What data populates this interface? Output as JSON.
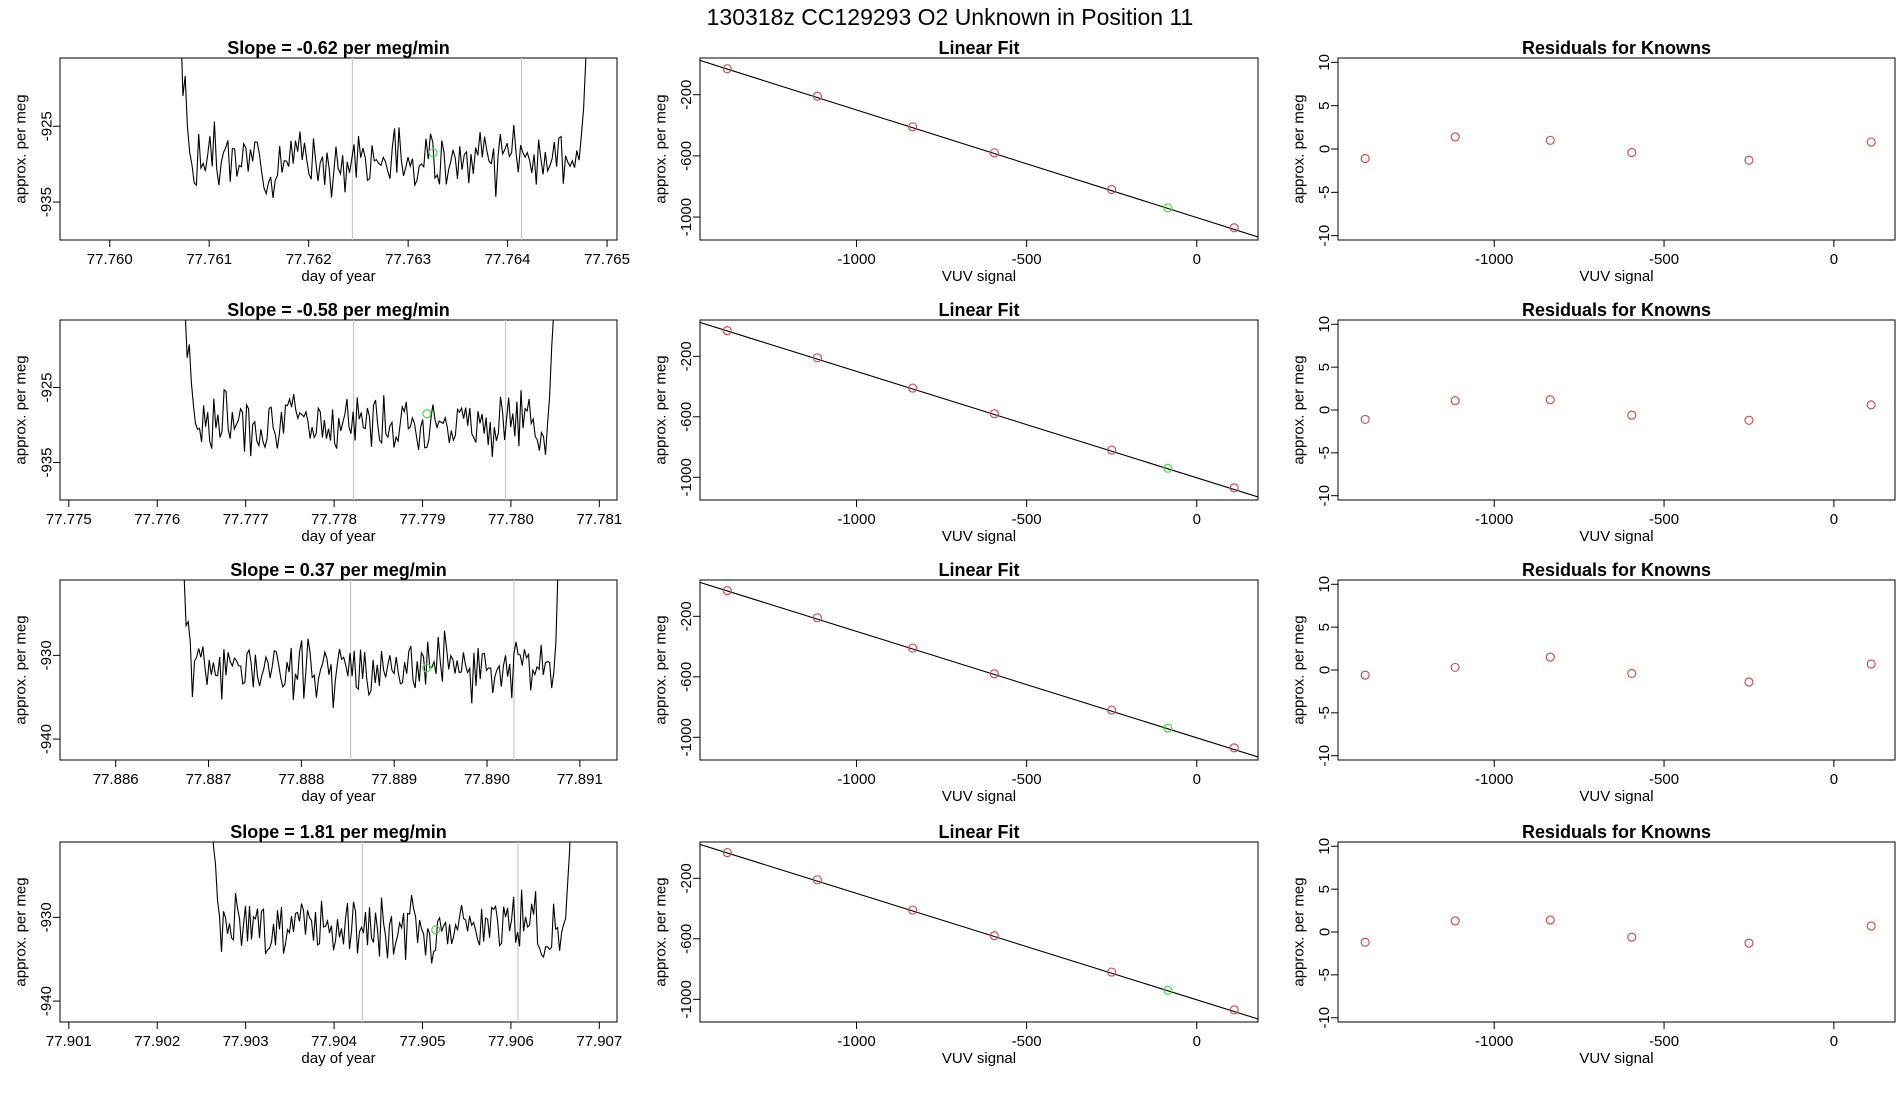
{
  "figure": {
    "title": "130318z      CC129293    O2 Unknown in Position  11",
    "colors": {
      "line": "#000000",
      "grid": "#c8c8c8",
      "known_point": "#d05050",
      "unknown_point": "#44dd44",
      "axes": "#000000"
    }
  },
  "chart_data": [
    {
      "type": "line",
      "title": "Slope =  -0.62  per meg/min",
      "xlabel": "day of year",
      "ylabel": "approx. per meg",
      "xlim": [
        77.7595,
        77.7651
      ],
      "ylim": [
        -940,
        -916
      ],
      "xticks": [
        77.76,
        77.761,
        77.762,
        77.763,
        77.764,
        77.765
      ],
      "xtick_labels": [
        "77.760",
        "77.761",
        "77.762",
        "77.763",
        "77.764",
        "77.765"
      ],
      "yticks": [
        -925,
        -935
      ],
      "ytick_labels": [
        "-925",
        "-935"
      ],
      "vlines": [
        77.76244,
        77.76414
      ],
      "trace": {
        "x_start": 77.7606,
        "x_end": 77.7649,
        "level": -929.5,
        "noise": 2.4,
        "seed": 3
      },
      "marker": {
        "x": 77.76325,
        "y": -928.5
      }
    },
    {
      "type": "scatter",
      "title": "Linear Fit",
      "xlabel": "VUV signal",
      "ylabel": "approx. per meg",
      "xlim": [
        -1460,
        180
      ],
      "ylim": [
        -1150,
        40
      ],
      "xticks": [
        -1000,
        -500,
        0
      ],
      "xtick_labels": [
        "-1000",
        "-500",
        "0"
      ],
      "yticks": [
        -200,
        -600,
        -1000
      ],
      "ytick_labels": [
        "-200",
        "-600",
        "-1000"
      ],
      "fit_line": {
        "x": [
          -1460,
          180
        ],
        "y": [
          24,
          -1130
        ]
      },
      "known_points": {
        "x": [
          -1380,
          -1115,
          -835,
          -595,
          -250,
          110
        ],
        "y": [
          -30,
          -210,
          -410,
          -580,
          -820,
          -1070
        ]
      },
      "unknown_points": {
        "x": [
          -85
        ],
        "y": [
          -940
        ]
      }
    },
    {
      "type": "scatter",
      "title": "Residuals for Knowns",
      "xlabel": "VUV signal",
      "ylabel": "approx. per meg",
      "xlim": [
        -1460,
        180
      ],
      "ylim": [
        -10.5,
        10.5
      ],
      "xticks": [
        -1000,
        -500,
        0
      ],
      "xtick_labels": [
        "-1000",
        "-500",
        "0"
      ],
      "yticks": [
        10,
        5,
        0,
        -5,
        -10
      ],
      "ytick_labels": [
        "10",
        "5",
        "0",
        "-5",
        "-10"
      ],
      "points": {
        "x": [
          -1380,
          -1115,
          -835,
          -595,
          -250,
          110
        ],
        "y": [
          -1.1,
          1.4,
          1.0,
          -0.4,
          -1.3,
          0.8
        ]
      }
    },
    {
      "type": "line",
      "title": "Slope =  -0.58  per meg/min",
      "xlabel": "day of year",
      "ylabel": "approx. per meg",
      "xlim": [
        77.7749,
        77.7812
      ],
      "ylim": [
        -940,
        -916
      ],
      "xticks": [
        77.775,
        77.776,
        77.777,
        77.778,
        77.779,
        77.78,
        77.781
      ],
      "xtick_labels": [
        "77.775",
        "77.776",
        "77.777",
        "77.778",
        "77.779",
        "77.780",
        "77.781"
      ],
      "yticks": [
        -925,
        -935
      ],
      "ytick_labels": [
        "-925",
        "-935"
      ],
      "vlines": [
        77.77822,
        77.77994
      ],
      "trace": {
        "x_start": 77.7762,
        "x_end": 77.7806,
        "level": -929.5,
        "noise": 2.4,
        "seed": 7
      },
      "marker": {
        "x": 77.77905,
        "y": -928.5
      }
    },
    {
      "type": "scatter",
      "title": "Linear Fit",
      "xlabel": "VUV signal",
      "ylabel": "approx. per meg",
      "xlim": [
        -1460,
        180
      ],
      "ylim": [
        -1150,
        40
      ],
      "xticks": [
        -1000,
        -500,
        0
      ],
      "xtick_labels": [
        "-1000",
        "-500",
        "0"
      ],
      "yticks": [
        -200,
        -600,
        -1000
      ],
      "ytick_labels": [
        "-200",
        "-600",
        "-1000"
      ],
      "fit_line": {
        "x": [
          -1460,
          180
        ],
        "y": [
          24,
          -1130
        ]
      },
      "known_points": {
        "x": [
          -1380,
          -1115,
          -835,
          -595,
          -250,
          110
        ],
        "y": [
          -30,
          -210,
          -410,
          -580,
          -820,
          -1070
        ]
      },
      "unknown_points": {
        "x": [
          -85
        ],
        "y": [
          -940
        ]
      }
    },
    {
      "type": "scatter",
      "title": "Residuals for Knowns",
      "xlabel": "VUV signal",
      "ylabel": "approx. per meg",
      "xlim": [
        -1460,
        180
      ],
      "ylim": [
        -10.5,
        10.5
      ],
      "xticks": [
        -1000,
        -500,
        0
      ],
      "xtick_labels": [
        "-1000",
        "-500",
        "0"
      ],
      "yticks": [
        10,
        5,
        0,
        -5,
        -10
      ],
      "ytick_labels": [
        "10",
        "5",
        "0",
        "-5",
        "-10"
      ],
      "points": {
        "x": [
          -1380,
          -1115,
          -835,
          -595,
          -250,
          110
        ],
        "y": [
          -1.1,
          1.1,
          1.2,
          -0.6,
          -1.2,
          0.6
        ]
      }
    },
    {
      "type": "line",
      "title": "Slope =  0.37  per meg/min",
      "xlabel": "day of year",
      "ylabel": "approx. per meg",
      "xlim": [
        77.8854,
        77.8914
      ],
      "ylim": [
        -942.5,
        -921
      ],
      "xticks": [
        77.886,
        77.887,
        77.888,
        77.889,
        77.89,
        77.891
      ],
      "xtick_labels": [
        "77.886",
        "77.887",
        "77.888",
        "77.889",
        "77.890",
        "77.891"
      ],
      "yticks": [
        -930,
        -940
      ],
      "ytick_labels": [
        "-930",
        "-940"
      ],
      "vlines": [
        77.88853,
        77.89029
      ],
      "trace": {
        "x_start": 77.8866,
        "x_end": 77.8909,
        "level": -931.5,
        "noise": 2.2,
        "seed": 11
      },
      "marker": {
        "x": 77.88935,
        "y": -931.5
      }
    },
    {
      "type": "scatter",
      "title": "Linear Fit",
      "xlabel": "VUV signal",
      "ylabel": "approx. per meg",
      "xlim": [
        -1460,
        180
      ],
      "ylim": [
        -1150,
        40
      ],
      "xticks": [
        -1000,
        -500,
        0
      ],
      "xtick_labels": [
        "-1000",
        "-500",
        "0"
      ],
      "yticks": [
        -200,
        -600,
        -1000
      ],
      "ytick_labels": [
        "-200",
        "-600",
        "-1000"
      ],
      "fit_line": {
        "x": [
          -1460,
          180
        ],
        "y": [
          24,
          -1130
        ]
      },
      "known_points": {
        "x": [
          -1380,
          -1115,
          -835,
          -595,
          -250,
          110
        ],
        "y": [
          -30,
          -210,
          -410,
          -580,
          -820,
          -1070
        ]
      },
      "unknown_points": {
        "x": [
          -85
        ],
        "y": [
          -940
        ]
      }
    },
    {
      "type": "scatter",
      "title": "Residuals for Knowns",
      "xlabel": "VUV signal",
      "ylabel": "approx. per meg",
      "xlim": [
        -1460,
        180
      ],
      "ylim": [
        -10.5,
        10.5
      ],
      "xticks": [
        -1000,
        -500,
        0
      ],
      "xtick_labels": [
        "-1000",
        "-500",
        "0"
      ],
      "yticks": [
        10,
        5,
        0,
        -5,
        -10
      ],
      "ytick_labels": [
        "10",
        "5",
        "0",
        "-5",
        "-10"
      ],
      "points": {
        "x": [
          -1380,
          -1115,
          -835,
          -595,
          -250,
          110
        ],
        "y": [
          -0.6,
          0.3,
          1.5,
          -0.4,
          -1.4,
          0.7
        ]
      }
    },
    {
      "type": "line",
      "title": "Slope =  1.81  per meg/min",
      "xlabel": "day of year",
      "ylabel": "approx. per meg",
      "xlim": [
        77.9009,
        77.9072
      ],
      "ylim": [
        -942.5,
        -921
      ],
      "xticks": [
        77.901,
        77.902,
        77.903,
        77.904,
        77.905,
        77.906,
        77.907
      ],
      "xtick_labels": [
        "77.901",
        "77.902",
        "77.903",
        "77.904",
        "77.905",
        "77.906",
        "77.907"
      ],
      "yticks": [
        -930,
        -940
      ],
      "ytick_labels": [
        "-930",
        "-940"
      ],
      "vlines": [
        77.90432,
        77.90608
      ],
      "trace": {
        "x_start": 77.9025,
        "x_end": 77.9068,
        "level": -931.0,
        "noise": 2.2,
        "seed": 17
      },
      "marker": {
        "x": 77.90515,
        "y": -931.5
      }
    },
    {
      "type": "scatter",
      "title": "Linear Fit",
      "xlabel": "VUV signal",
      "ylabel": "approx. per meg",
      "xlim": [
        -1460,
        180
      ],
      "ylim": [
        -1150,
        40
      ],
      "xticks": [
        -1000,
        -500,
        0
      ],
      "xtick_labels": [
        "-1000",
        "-500",
        "0"
      ],
      "yticks": [
        -200,
        -600,
        -1000
      ],
      "ytick_labels": [
        "-200",
        "-600",
        "-1000"
      ],
      "fit_line": {
        "x": [
          -1460,
          180
        ],
        "y": [
          24,
          -1130
        ]
      },
      "known_points": {
        "x": [
          -1380,
          -1115,
          -835,
          -595,
          -250,
          110
        ],
        "y": [
          -30,
          -210,
          -410,
          -580,
          -820,
          -1070
        ]
      },
      "unknown_points": {
        "x": [
          -85
        ],
        "y": [
          -940
        ]
      }
    },
    {
      "type": "scatter",
      "title": "Residuals for Knowns",
      "xlabel": "VUV signal",
      "ylabel": "approx. per meg",
      "xlim": [
        -1460,
        180
      ],
      "ylim": [
        -10.5,
        10.5
      ],
      "xticks": [
        -1000,
        -500,
        0
      ],
      "xtick_labels": [
        "-1000",
        "-500",
        "0"
      ],
      "yticks": [
        10,
        5,
        0,
        -5,
        -10
      ],
      "ytick_labels": [
        "10",
        "5",
        "0",
        "-5",
        "-10"
      ],
      "points": {
        "x": [
          -1380,
          -1115,
          -835,
          -595,
          -250,
          110
        ],
        "y": [
          -1.2,
          1.3,
          1.4,
          -0.6,
          -1.3,
          0.7
        ]
      }
    }
  ]
}
